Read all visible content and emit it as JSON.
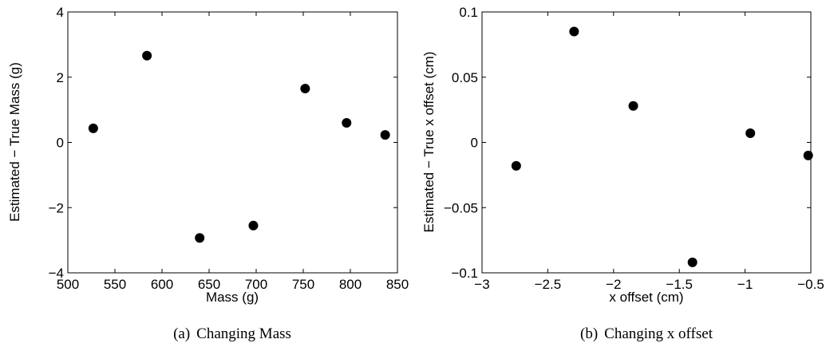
{
  "chart_data": [
    {
      "type": "scatter",
      "xlabel": "Mass (g)",
      "ylabel": "Estimated − True Mass (g)",
      "caption_prefix": "(a)",
      "caption_text": "Changing Mass",
      "xlim": [
        500,
        850
      ],
      "ylim": [
        -4,
        4
      ],
      "xticks": [
        500,
        550,
        600,
        650,
        700,
        750,
        800,
        850
      ],
      "xtick_labels": [
        "500",
        "550",
        "600",
        "650",
        "700",
        "750",
        "800",
        "850"
      ],
      "yticks": [
        -4,
        -2,
        0,
        2,
        4
      ],
      "ytick_labels": [
        "−4",
        "−2",
        "0",
        "2",
        "4"
      ],
      "grid": false,
      "x": [
        527,
        584,
        640,
        697,
        752,
        796,
        837
      ],
      "y": [
        0.43,
        2.66,
        -2.93,
        -2.55,
        1.65,
        0.6,
        0.23
      ]
    },
    {
      "type": "scatter",
      "xlabel": "x offset (cm)",
      "ylabel": "Estimated − True x offset (cm)",
      "caption_prefix": "(b)",
      "caption_text": "Changing x offset",
      "xlim": [
        -3,
        -0.5
      ],
      "ylim": [
        -0.1,
        0.1
      ],
      "xticks": [
        -3,
        -2.5,
        -2,
        -1.5,
        -1,
        -0.5
      ],
      "xtick_labels": [
        "−3",
        "−2.5",
        "−2",
        "−1.5",
        "−1",
        "−0.5"
      ],
      "yticks": [
        -0.1,
        -0.05,
        0,
        0.05,
        0.1
      ],
      "ytick_labels": [
        "−0.1",
        "−0.05",
        "0",
        "0.05",
        "0.1"
      ],
      "grid": false,
      "x": [
        -2.74,
        -2.3,
        -1.85,
        -1.4,
        -0.96,
        -0.52
      ],
      "y": [
        -0.018,
        0.085,
        0.028,
        -0.092,
        0.007,
        -0.01
      ]
    }
  ]
}
